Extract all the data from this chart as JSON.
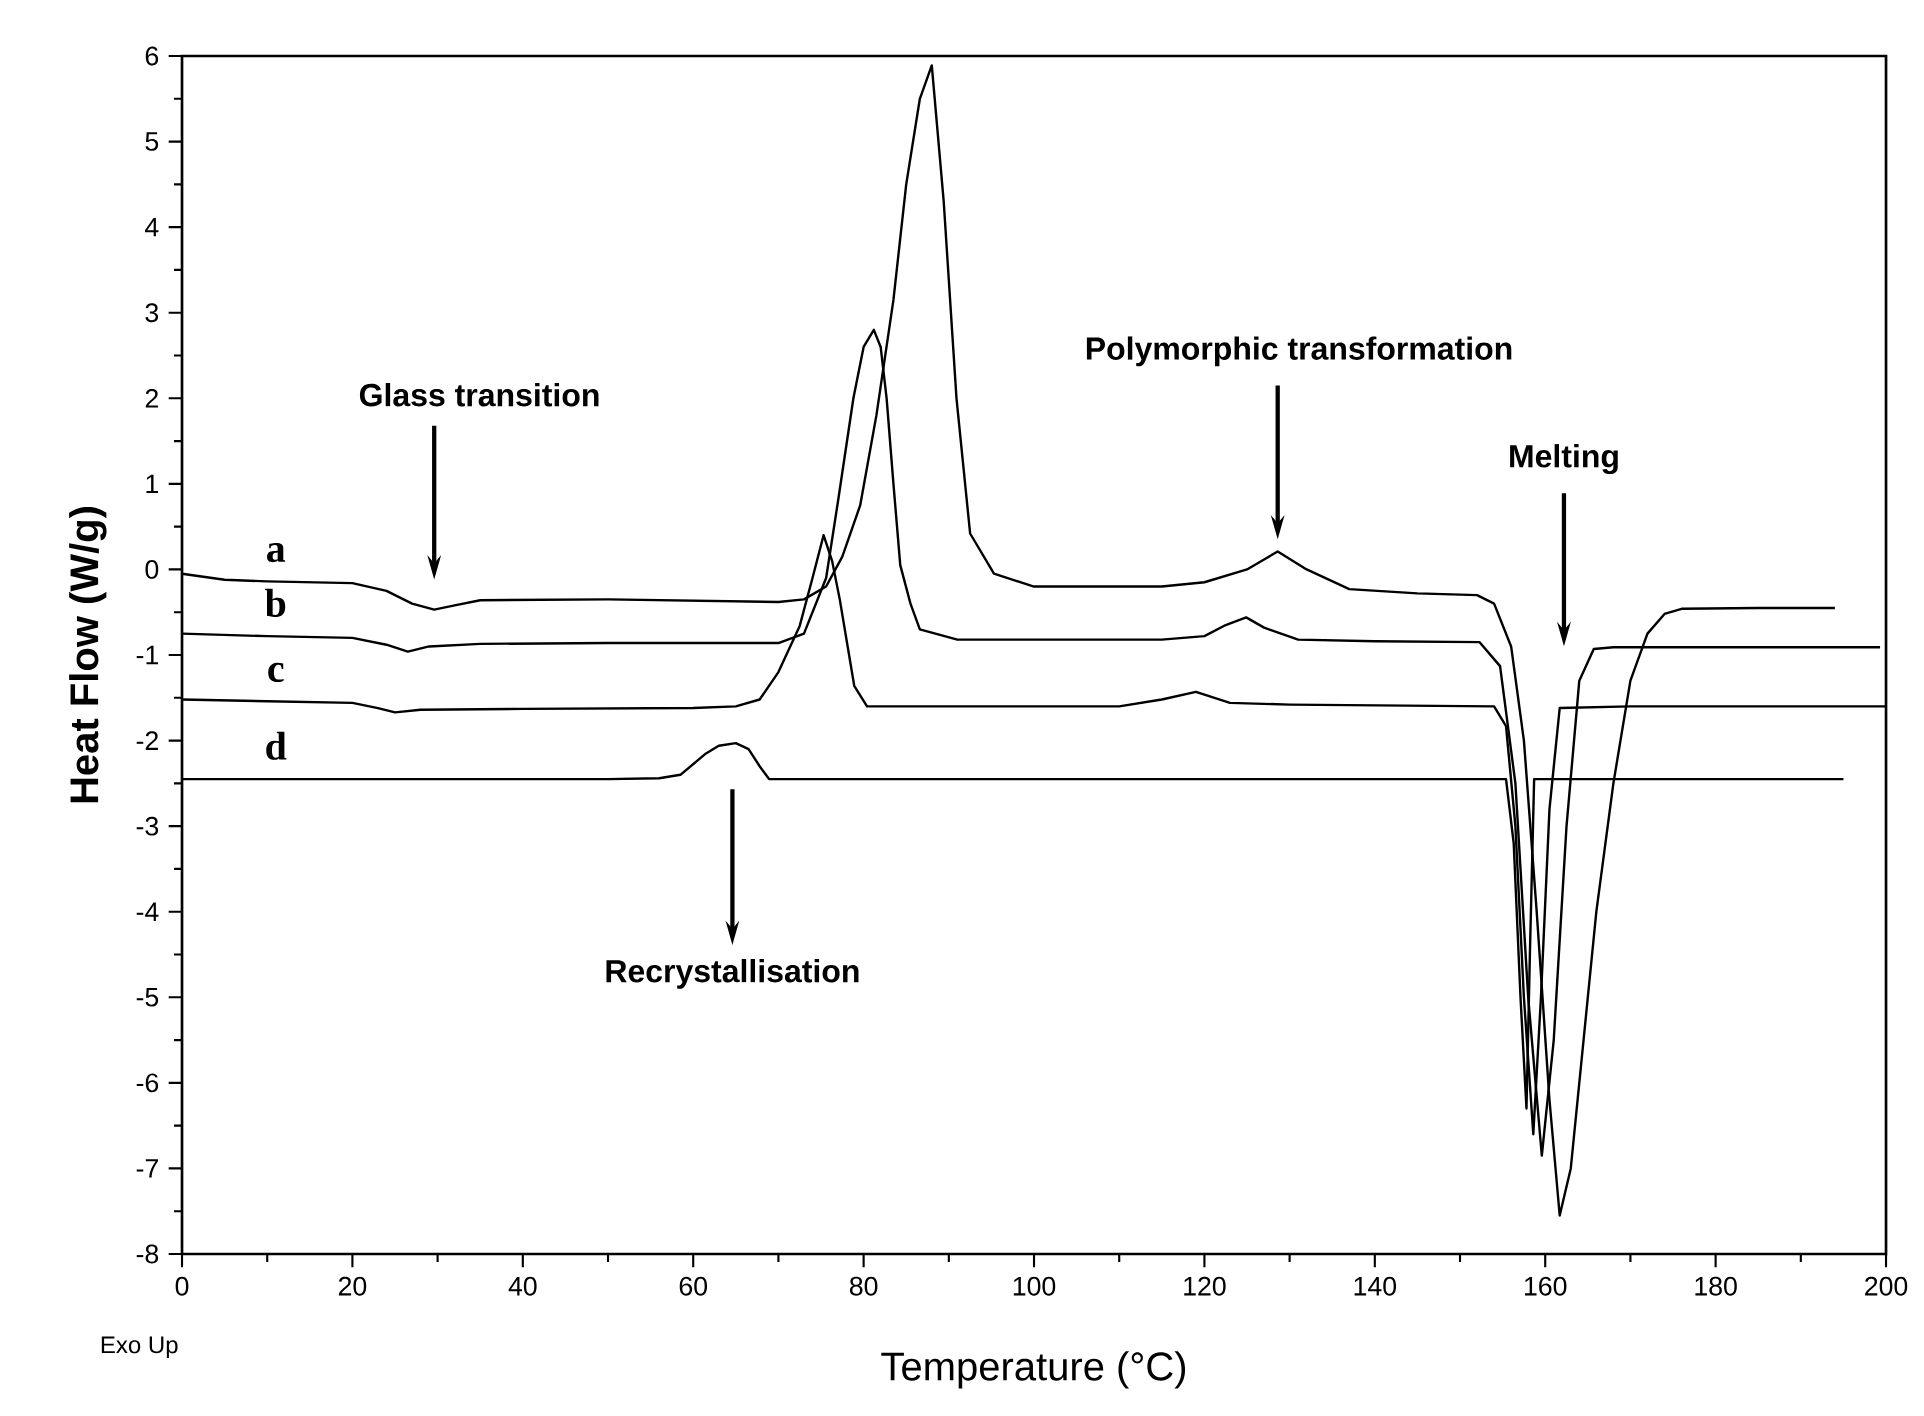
{
  "chart_data": {
    "type": "line",
    "xlabel": "Temperature (°C)",
    "ylabel": "Heat Flow (W/g)",
    "xlim": [
      0,
      200
    ],
    "ylim": [
      -8,
      6
    ],
    "xticks": [
      0,
      20,
      40,
      60,
      80,
      100,
      120,
      140,
      160,
      180,
      200
    ],
    "yticks": [
      -8,
      -7,
      -6,
      -5,
      -4,
      -3,
      -2,
      -1,
      0,
      1,
      2,
      3,
      4,
      5,
      6
    ],
    "legend": "left",
    "annotations": [
      "Glass transition",
      "Polymorphic transformation",
      "Melting",
      "Recrystallisation",
      "Exo Up"
    ],
    "series": [
      {
        "name": "a",
        "color": "#000000",
        "x": [
          0,
          5,
          10,
          20,
          24,
          27,
          29.6,
          32,
          35,
          50,
          70,
          73,
          75.6,
          77.5,
          79.6,
          81.5,
          83.5,
          85,
          86.6,
          88,
          89.4,
          90.9,
          92.5,
          95.3,
          100,
          115,
          120,
          125,
          128.6,
          132,
          137,
          145,
          152,
          154,
          156,
          157.5,
          159,
          160.5,
          161.7,
          163,
          164.5,
          166,
          168,
          170,
          172,
          174,
          176,
          185,
          194
        ],
        "values": [
          -0.05,
          -0.12,
          -0.14,
          -0.16,
          -0.25,
          -0.4,
          -0.47,
          -0.42,
          -0.36,
          -0.35,
          -0.38,
          -0.35,
          -0.2,
          0.15,
          0.75,
          1.8,
          3.15,
          4.5,
          5.5,
          5.89,
          4.3,
          2.0,
          0.42,
          -0.05,
          -0.2,
          -0.2,
          -0.15,
          0.0,
          0.21,
          0.0,
          -0.23,
          -0.28,
          -0.3,
          -0.4,
          -0.9,
          -2.0,
          -4.0,
          -6.2,
          -7.55,
          -7.0,
          -5.5,
          -4.0,
          -2.5,
          -1.3,
          -0.75,
          -0.52,
          -0.46,
          -0.45,
          -0.45
        ]
      },
      {
        "name": "b",
        "color": "#000000",
        "x": [
          0,
          10,
          20,
          24,
          26.5,
          29,
          35,
          50,
          70,
          73,
          75.6,
          77,
          78.8,
          80,
          81.2,
          82,
          82.7,
          83.5,
          84.3,
          85.5,
          86.6,
          91,
          100,
          115,
          120,
          122.5,
          124.9,
          127,
          131,
          140,
          152.3,
          154.7,
          156.5,
          158,
          159.6,
          161,
          162.5,
          164,
          165.7,
          168,
          180,
          199.3
        ],
        "values": [
          -0.75,
          -0.78,
          -0.8,
          -0.88,
          -0.96,
          -0.9,
          -0.87,
          -0.86,
          -0.86,
          -0.75,
          -0.1,
          0.8,
          2.0,
          2.6,
          2.8,
          2.6,
          2.0,
          1.0,
          0.05,
          -0.4,
          -0.7,
          -0.82,
          -0.82,
          -0.82,
          -0.78,
          -0.65,
          -0.56,
          -0.68,
          -0.82,
          -0.84,
          -0.85,
          -1.13,
          -2.5,
          -5.0,
          -6.85,
          -5.5,
          -3.0,
          -1.3,
          -0.93,
          -0.91,
          -0.91,
          -0.91
        ]
      },
      {
        "name": "c",
        "color": "#000000",
        "x": [
          0,
          10,
          20,
          23,
          25,
          28,
          40,
          60,
          65,
          67.8,
          70,
          72.5,
          74,
          75.3,
          76.3,
          77.2,
          78.9,
          80.4,
          90,
          110,
          115,
          119,
          123,
          130,
          154,
          155.4,
          156.5,
          157.5,
          158.6,
          159.5,
          160.5,
          161.7,
          170,
          200
        ],
        "values": [
          -1.52,
          -1.54,
          -1.56,
          -1.62,
          -1.67,
          -1.64,
          -1.63,
          -1.62,
          -1.6,
          -1.52,
          -1.2,
          -0.66,
          -0.1,
          0.4,
          0.1,
          -0.35,
          -1.36,
          -1.6,
          -1.6,
          -1.6,
          -1.52,
          -1.43,
          -1.56,
          -1.58,
          -1.6,
          -1.83,
          -3.0,
          -5.0,
          -6.6,
          -5.0,
          -2.8,
          -1.62,
          -1.6,
          -1.6
        ]
      },
      {
        "name": "d",
        "color": "#000000",
        "x": [
          0,
          10,
          50,
          56,
          58.5,
          61.5,
          63,
          65,
          66.5,
          67.8,
          68.9,
          80,
          120,
          155.4,
          156.3,
          157.1,
          157.8,
          158.2,
          158.7,
          170,
          195
        ],
        "values": [
          -2.45,
          -2.45,
          -2.45,
          -2.44,
          -2.4,
          -2.15,
          -2.06,
          -2.03,
          -2.1,
          -2.3,
          -2.45,
          -2.45,
          -2.45,
          -2.45,
          -3.2,
          -5.0,
          -6.3,
          -4.5,
          -2.45,
          -2.45,
          -2.45
        ]
      }
    ]
  }
}
